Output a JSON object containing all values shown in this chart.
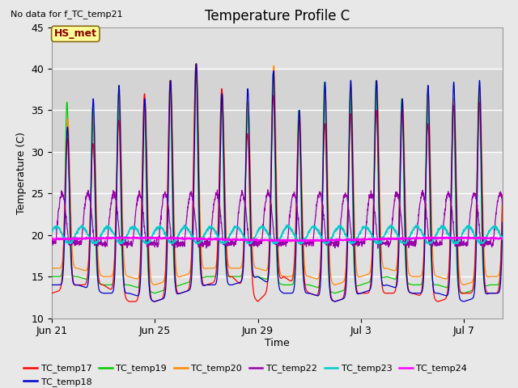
{
  "title": "Temperature Profile C",
  "top_left_text": "No data for f_TC_temp21",
  "xlabel": "Time",
  "ylabel": "Temperature (C)",
  "ylim": [
    10,
    45
  ],
  "yticks": [
    10,
    15,
    20,
    25,
    30,
    35,
    40,
    45
  ],
  "shade_ymin": 30,
  "shade_ymax": 40,
  "hs_met_label": "HS_met",
  "legend_entries": [
    {
      "label": "TC_temp17",
      "color": "#FF0000"
    },
    {
      "label": "TC_temp18",
      "color": "#0000CC"
    },
    {
      "label": "TC_temp19",
      "color": "#00CC00"
    },
    {
      "label": "TC_temp20",
      "color": "#FF8800"
    },
    {
      "label": "TC_temp22",
      "color": "#9900AA"
    },
    {
      "label": "TC_temp23",
      "color": "#00CCCC"
    },
    {
      "label": "TC_temp24",
      "color": "#FF00FF"
    }
  ],
  "series_colors": {
    "TC_temp17": "#FF0000",
    "TC_temp18": "#0000CC",
    "TC_temp19": "#00CC00",
    "TC_temp20": "#FF8800",
    "TC_temp22": "#9900AA",
    "TC_temp23": "#00CCCC",
    "TC_temp24": "#FF00FF"
  },
  "bg_color": "#E8E8E8",
  "ax_bg_color": "#E8E8E8",
  "plot_bg_color": "#E0E0E0",
  "grid_color": "#FFFFFF",
  "title_fontsize": 12,
  "label_fontsize": 9,
  "tick_fontsize": 9,
  "xtick_labels": [
    "Jun 21",
    "Jun 25",
    "Jun 29",
    "Jul 3",
    "Jul 7"
  ],
  "xtick_positions": [
    0,
    4,
    8,
    12,
    16
  ]
}
